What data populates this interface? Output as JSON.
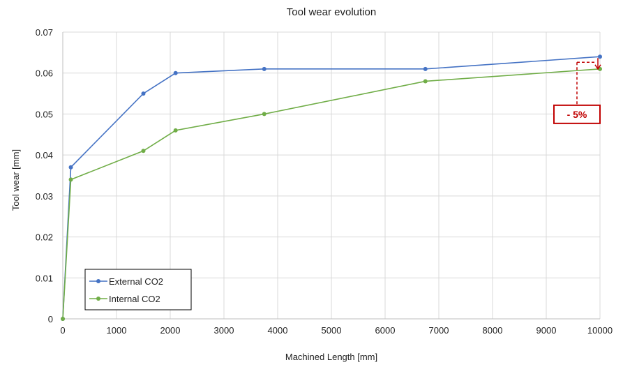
{
  "chart_data": {
    "type": "line",
    "title": "Tool wear evolution",
    "xlabel": "Machined Length [mm]",
    "ylabel": "Tool wear [mm]",
    "xlim": [
      0,
      10000
    ],
    "ylim": [
      0,
      0.07
    ],
    "x_ticks": [
      "0",
      "1000",
      "2000",
      "3000",
      "4000",
      "5000",
      "6000",
      "7000",
      "8000",
      "9000",
      "10000"
    ],
    "y_ticks": [
      "0",
      "0.01",
      "0.02",
      "0.03",
      "0.04",
      "0.05",
      "0.06",
      "0.07"
    ],
    "grid": true,
    "legend_position": "bottom-left",
    "series": [
      {
        "name": "External CO2",
        "color": "#4472c4",
        "x": [
          0,
          150,
          1500,
          2100,
          3750,
          6750,
          10000
        ],
        "y": [
          0,
          0.037,
          0.055,
          0.06,
          0.061,
          0.061,
          0.064
        ]
      },
      {
        "name": "Internal CO2",
        "color": "#70ad47",
        "x": [
          0,
          150,
          1500,
          2100,
          3750,
          6750,
          10000
        ],
        "y": [
          0,
          0.034,
          0.041,
          0.046,
          0.05,
          0.058,
          0.061
        ]
      }
    ],
    "annotation": {
      "text": "- 5%",
      "color": "#c00000",
      "x": 10000,
      "y_from": 0.064,
      "y_to": 0.061
    }
  }
}
